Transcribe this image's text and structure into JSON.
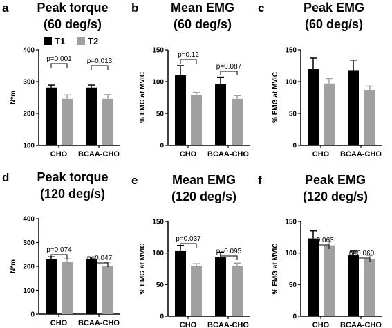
{
  "colors": {
    "T1": "#000000",
    "T2": "#a0a0a0"
  },
  "legend": {
    "entries": [
      "T1",
      "T2"
    ]
  },
  "chart_data": [
    {
      "type": "bar",
      "letter": "a",
      "title_lines": [
        "Peak torque",
        "(60 deg/s)"
      ],
      "ylabel": "N*m",
      "ylim": [
        100,
        400
      ],
      "yticks": [
        "100",
        "200",
        "300",
        "400"
      ],
      "categories": [
        "CHO",
        "BCAA-CHO"
      ],
      "series": [
        {
          "name": "T1",
          "values": [
            281,
            281
          ],
          "errors": [
            8,
            8
          ]
        },
        {
          "name": "T2",
          "values": [
            246,
            246
          ],
          "errors": [
            12,
            13
          ]
        }
      ],
      "annotations": [
        "p=0.001",
        "p=0.013"
      ]
    },
    {
      "type": "bar",
      "letter": "b",
      "title_lines": [
        "Mean EMG",
        "(60 deg/s)"
      ],
      "ylabel": "% EMG at MVIC",
      "ylim": [
        0,
        150
      ],
      "yticks": [
        "0",
        "50",
        "100",
        "150"
      ],
      "categories": [
        "CHO",
        "BCAA-CHO"
      ],
      "series": [
        {
          "name": "T1",
          "values": [
            110,
            96
          ],
          "errors": [
            15,
            11
          ]
        },
        {
          "name": "T2",
          "values": [
            79,
            73
          ],
          "errors": [
            4,
            5
          ]
        }
      ],
      "annotations": [
        "p=0.12",
        "p=0.087"
      ]
    },
    {
      "type": "bar",
      "letter": "c",
      "title_lines": [
        "Peak EMG",
        "(60 deg/s)"
      ],
      "ylabel": "% EMG at MVIC",
      "ylim": [
        0,
        150
      ],
      "yticks": [
        "0",
        "50",
        "100",
        "150"
      ],
      "categories": [
        "CHO",
        "BCAA-CHO"
      ],
      "series": [
        {
          "name": "T1",
          "values": [
            120,
            118
          ],
          "errors": [
            17,
            16
          ]
        },
        {
          "name": "T2",
          "values": [
            97,
            87
          ],
          "errors": [
            8,
            6
          ]
        }
      ],
      "annotations": []
    },
    {
      "type": "bar",
      "letter": "d",
      "title_lines": [
        "Peak torque",
        "(120 deg/s)"
      ],
      "ylabel": "N*m",
      "ylim": [
        0,
        400
      ],
      "yticks": [
        "0",
        "100",
        "200",
        "300",
        "400"
      ],
      "categories": [
        "CHO",
        "BCAA-CHO"
      ],
      "series": [
        {
          "name": "T1",
          "values": [
            230,
            230
          ],
          "errors": [
            10,
            9
          ]
        },
        {
          "name": "T2",
          "values": [
            220,
            202
          ],
          "errors": [
            11,
            16
          ]
        }
      ],
      "annotations": [
        "p=0.074",
        "p=0.047"
      ]
    },
    {
      "type": "bar",
      "letter": "e",
      "title_lines": [
        "Mean EMG",
        "(120 deg/s)"
      ],
      "ylabel": "% EMG at MVIC",
      "ylim": [
        0,
        150
      ],
      "yticks": [
        "0",
        "50",
        "100",
        "150"
      ],
      "categories": [
        "CHO",
        "BCAA-CHO"
      ],
      "series": [
        {
          "name": "T1",
          "values": [
            103,
            93
          ],
          "errors": [
            9,
            8
          ]
        },
        {
          "name": "T2",
          "values": [
            79,
            79
          ],
          "errors": [
            4,
            5
          ]
        }
      ],
      "annotations": [
        "p=0.037",
        "p=0.095"
      ]
    },
    {
      "type": "bar",
      "letter": "f",
      "title_lines": [
        "Peak EMG",
        "(120 deg/s)"
      ],
      "ylabel": "% EMG at MVIC",
      "ylim": [
        0,
        150
      ],
      "yticks": [
        "0",
        "50",
        "100",
        "150"
      ],
      "categories": [
        "CHO",
        "BCAA-CHO"
      ],
      "series": [
        {
          "name": "T1",
          "values": [
            123,
            97
          ],
          "errors": [
            12,
            6
          ]
        },
        {
          "name": "T2",
          "values": [
            112,
            91
          ],
          "errors": [
            10,
            5
          ]
        }
      ],
      "annotations": [
        "p=0.063",
        "p=0.060"
      ]
    }
  ]
}
